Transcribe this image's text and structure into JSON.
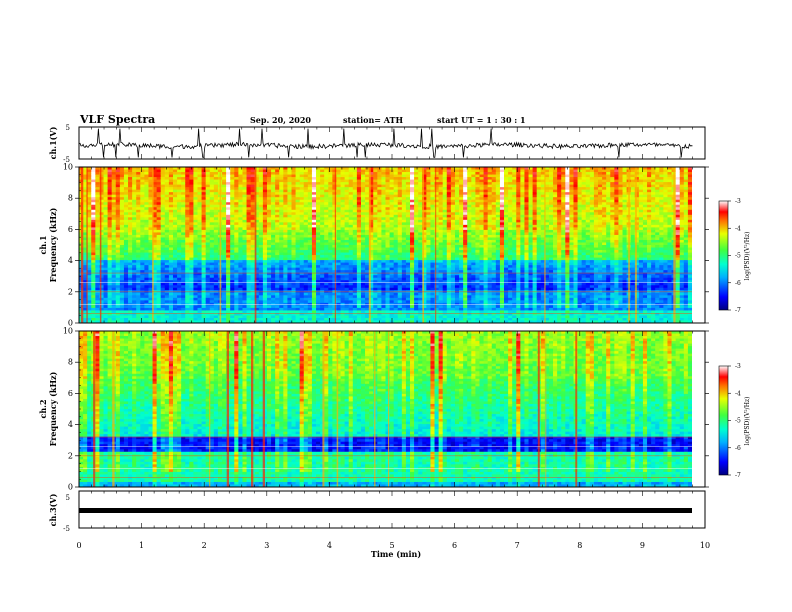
{
  "header": {
    "title": "VLF Spectra",
    "date": "Sep. 20, 2020",
    "station": "station= ATH",
    "start": "start  UT =   1 : 30 : 1"
  },
  "chart_data": [
    {
      "type": "line",
      "panel": "ch1-waveform",
      "ylabel": "ch.1(V)",
      "ylim": [
        -5,
        5
      ],
      "ytick_labels": [
        "5",
        "-5"
      ],
      "xlim": [
        0,
        10
      ],
      "trace": "noisy waveform centered near -0.8 V, amplitude roughly +/-1 V with frequent spikes toward +/-5 V, ending at about 9.8 min"
    },
    {
      "type": "heatmap",
      "panel": "ch1-spectrogram",
      "ylabel_top": "ch.1",
      "ylabel": "Frequency (kHz)",
      "ylim": [
        0,
        10
      ],
      "ytick_labels": [
        "0",
        "2",
        "4",
        "6",
        "8",
        "10"
      ],
      "xlim": [
        0,
        10
      ],
      "colorbar": {
        "label": "log(PSD)(V²/Hz)",
        "range": [
          -7,
          -3
        ],
        "tick_labels": [
          "-3",
          "-4",
          "-5",
          "-6",
          "-7"
        ]
      }
    },
    {
      "type": "heatmap",
      "panel": "ch2-spectrogram",
      "ylabel_top": "ch.2",
      "ylabel": "Frequency (kHz)",
      "ylim": [
        0,
        10
      ],
      "ytick_labels": [
        "0",
        "2",
        "4",
        "6",
        "8",
        "10"
      ],
      "xlim": [
        0,
        10
      ],
      "colorbar": {
        "label": "log(PSD)(V²/Hz)",
        "range": [
          -7,
          -3
        ],
        "tick_labels": [
          "-3",
          "-4",
          "-5",
          "-6",
          "-7"
        ]
      }
    },
    {
      "type": "line",
      "panel": "ch3-waveform",
      "ylabel": "ch.3(V)",
      "ylim": [
        -5,
        5
      ],
      "ytick_labels": [
        "5",
        "-5"
      ],
      "xlim": [
        0,
        10
      ],
      "trace": "flat thick band near -1.5 V"
    }
  ],
  "xaxis": {
    "label": "Time  (min)",
    "tick_labels": [
      "0",
      "1",
      "2",
      "3",
      "4",
      "5",
      "6",
      "7",
      "8",
      "9",
      "10"
    ]
  }
}
